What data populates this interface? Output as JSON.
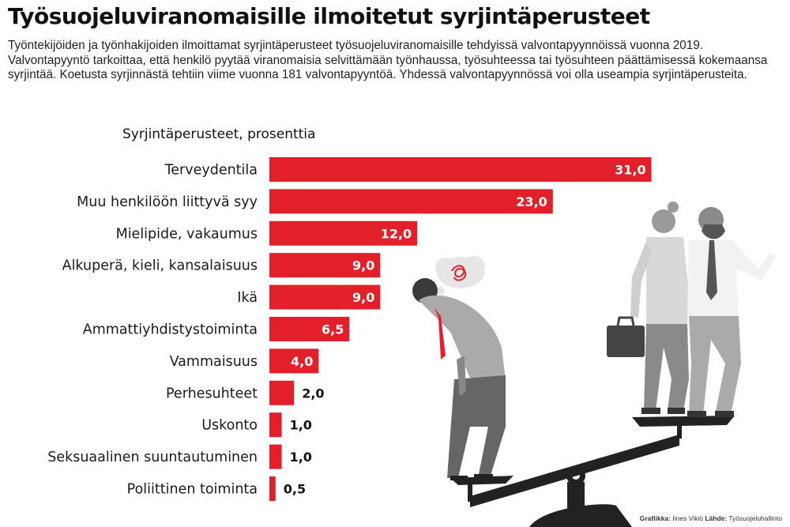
{
  "title": "Työsuojeluviranomaisille ilmoitetut syrjintäperusteet",
  "subtitle": "Työntekijöiden ja työnhakijoiden ilmoittamat syrjintäperusteet työsuojeluviranomaisille tehdyissä valvontapyynnöissä vuonna 2019. Valvontapyyntö tarkoittaa, että henkilö pyytää viranomaisia selvittämään työnhaussa, työsuhteessa tai työsuhteen päättämisessä kokemaansa syrjintää. Koetusta syrjinnästä tehtiin viime vuonna 181 valvontapyyntöä. Yhdessä valvontapyynnössä voi olla useampia syrjintäperusteita.",
  "chart_data": {
    "type": "bar",
    "orientation": "horizontal",
    "title": "Syrjintäperusteet, prosenttia",
    "categories": [
      "Terveydentila",
      "Muu henkilöön liittyvä syy",
      "Mielipide, vakaumus",
      "Alkuperä, kieli, kansalaisuus",
      "Ikä",
      "Ammattiyhdistystoiminta",
      "Vammaisuus",
      "Perhesuhteet",
      "Uskonto",
      "Seksuaalinen suuntautuminen",
      "Poliittinen toiminta"
    ],
    "values": [
      31.0,
      23.0,
      12.0,
      9.0,
      9.0,
      6.5,
      4.0,
      2.0,
      1.0,
      1.0,
      0.5
    ],
    "value_labels": [
      "31,0",
      "23,0",
      "12,0",
      "9,0",
      "9,0",
      "6,5",
      "4,0",
      "2,0",
      "1,0",
      "1,0",
      "0,5"
    ],
    "bar_color": "#e3202a",
    "grid": false,
    "legend": "none"
  },
  "credits": {
    "graphic_label": "Grafiikka:",
    "graphic_value": "Iines Vikiö",
    "source_label": "Lähde:",
    "source_value": "Työsuojeluhallinto"
  }
}
